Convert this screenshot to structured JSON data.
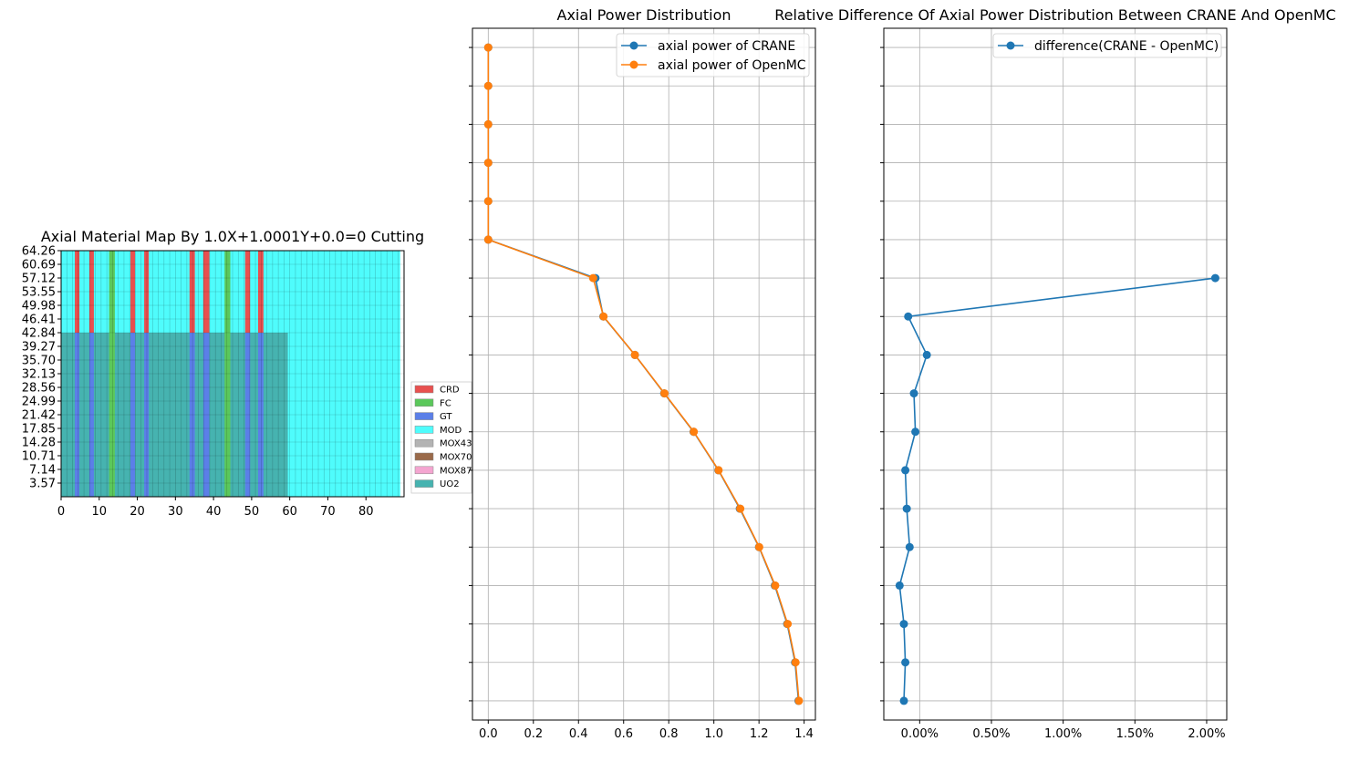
{
  "colors": {
    "series_blue": "#1f77b4",
    "series_orange": "#ff7f0e",
    "grid": "#b0b0b0",
    "materials": {
      "CRD": "#e8504f",
      "FC": "#5bc85b",
      "GT": "#5b7fe8",
      "MOD": "#4ffcfc",
      "MOX43": "#b3b3b3",
      "MOX70": "#9a6a4a",
      "MOX87": "#f4a5d0",
      "UO2": "#46b3b0"
    }
  },
  "chart_data": [
    {
      "type": "heatmap",
      "title": "Axial Material Map By 1.0X+1.0001Y+0.0=0 Cutting",
      "xlabel": "",
      "ylabel": "",
      "xlim": [
        0,
        90
      ],
      "xticks": [
        0,
        10,
        20,
        30,
        40,
        50,
        60,
        70,
        80
      ],
      "ylim": [
        0,
        64.26
      ],
      "ytick_labels": [
        "3.57",
        "7.14",
        "10.71",
        "14.28",
        "17.85",
        "21.42",
        "24.99",
        "28.56",
        "32.13",
        "35.70",
        "39.27",
        "42.84",
        "46.41",
        "49.98",
        "53.55",
        "57.12",
        "60.69",
        "64.26"
      ],
      "grid": true,
      "legend": [
        "CRD",
        "FC",
        "GT",
        "MOD",
        "MOX43",
        "MOX70",
        "MOX87",
        "UO2"
      ],
      "legend_position": "right",
      "regions": [
        {
          "material": "MOD",
          "x": [
            0,
            89
          ],
          "y": [
            0,
            64.26
          ]
        },
        {
          "material": "UO2",
          "x": [
            0,
            59.5
          ],
          "y": [
            0,
            42.84
          ]
        }
      ],
      "channels": [
        {
          "material": "CRD",
          "x": [
            3.6,
            4.8
          ]
        },
        {
          "material": "CRD",
          "x": [
            7.4,
            8.6
          ]
        },
        {
          "material": "FC",
          "x": [
            12.6,
            14.1
          ]
        },
        {
          "material": "CRD",
          "x": [
            18.2,
            19.4
          ]
        },
        {
          "material": "CRD",
          "x": [
            21.8,
            23.0
          ]
        },
        {
          "material": "CRD",
          "x": [
            33.7,
            35.1
          ]
        },
        {
          "material": "CRD",
          "x": [
            37.3,
            38.9
          ]
        },
        {
          "material": "FC",
          "x": [
            42.9,
            44.4
          ]
        },
        {
          "material": "CRD",
          "x": [
            48.3,
            49.6
          ]
        },
        {
          "material": "CRD",
          "x": [
            51.7,
            53.1
          ]
        }
      ]
    },
    {
      "type": "line",
      "title": "Axial Power Distribution",
      "xlabel": "",
      "ylabel": "",
      "xlim": [
        -0.07,
        1.45
      ],
      "xticks": [
        0.0,
        0.2,
        0.4,
        0.6,
        0.8,
        1.0,
        1.2,
        1.4
      ],
      "xtick_labels": [
        "0.0",
        "0.2",
        "0.4",
        "0.6",
        "0.8",
        "1.0",
        "1.2",
        "1.4"
      ],
      "ylim": [
        -0.5,
        17.5
      ],
      "grid": true,
      "legend_position": "top-right",
      "series": [
        {
          "name": "axial power of CRANE",
          "color": "#1f77b4",
          "x": [
            1.375,
            1.36,
            1.325,
            1.27,
            1.2,
            1.115,
            1.02,
            0.91,
            0.78,
            0.65,
            0.51,
            0.475,
            0.0,
            0.0,
            0.0,
            0.0,
            0.0,
            0.0
          ],
          "y": [
            0,
            1,
            2,
            3,
            4,
            5,
            6,
            7,
            8,
            9,
            10,
            11,
            12,
            13,
            14,
            15,
            16,
            17
          ]
        },
        {
          "name": "axial power of OpenMC",
          "color": "#ff7f0e",
          "x": [
            1.377,
            1.362,
            1.327,
            1.272,
            1.201,
            1.117,
            1.021,
            0.911,
            0.781,
            0.65,
            0.511,
            0.465,
            0.0,
            0.0,
            0.0,
            0.0,
            0.0,
            0.0
          ],
          "y": [
            0,
            1,
            2,
            3,
            4,
            5,
            6,
            7,
            8,
            9,
            10,
            11,
            12,
            13,
            14,
            15,
            16,
            17
          ]
        }
      ]
    },
    {
      "type": "line",
      "title": "Relative Difference Of Axial Power Distribution Between CRANE And OpenMC",
      "xlabel": "",
      "ylabel": "",
      "xlim": [
        -0.25,
        2.14
      ],
      "xticks": [
        0.0,
        0.5,
        1.0,
        1.5,
        2.0
      ],
      "xtick_labels": [
        "0.00%",
        "0.50%",
        "1.00%",
        "1.50%",
        "2.00%"
      ],
      "ylim": [
        -0.5,
        17.5
      ],
      "grid": true,
      "legend_position": "top-right",
      "series": [
        {
          "name": "difference(CRANE - OpenMC)",
          "color": "#1f77b4",
          "x": [
            -0.11,
            -0.1,
            -0.11,
            -0.14,
            -0.07,
            -0.09,
            -0.1,
            -0.03,
            -0.04,
            0.05,
            -0.08,
            2.06
          ],
          "y": [
            0,
            1,
            2,
            3,
            4,
            5,
            6,
            7,
            8,
            9,
            10,
            11
          ]
        }
      ]
    }
  ]
}
